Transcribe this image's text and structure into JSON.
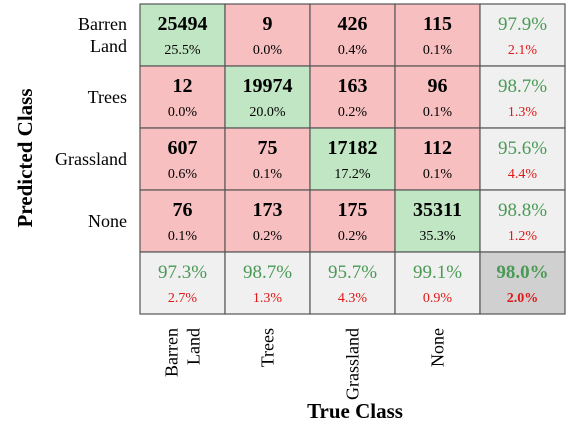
{
  "chart_data": {
    "type": "heatmap",
    "subtype": "confusion_matrix",
    "xlabel": "True Class",
    "ylabel": "Predicted Class",
    "row_labels": [
      [
        "Barren",
        "Land"
      ],
      [
        "Trees"
      ],
      [
        "Grassland"
      ],
      [
        "None"
      ]
    ],
    "col_labels": [
      [
        "Barren",
        "Land"
      ],
      [
        "Trees"
      ],
      [
        "Grassland"
      ],
      [
        "None"
      ]
    ],
    "cells": [
      [
        {
          "count": "25494",
          "pct": "25.5%"
        },
        {
          "count": "9",
          "pct": "0.0%"
        },
        {
          "count": "426",
          "pct": "0.4%"
        },
        {
          "count": "115",
          "pct": "0.1%"
        }
      ],
      [
        {
          "count": "12",
          "pct": "0.0%"
        },
        {
          "count": "19974",
          "pct": "20.0%"
        },
        {
          "count": "163",
          "pct": "0.2%"
        },
        {
          "count": "96",
          "pct": "0.1%"
        }
      ],
      [
        {
          "count": "607",
          "pct": "0.6%"
        },
        {
          "count": "75",
          "pct": "0.1%"
        },
        {
          "count": "17182",
          "pct": "17.2%"
        },
        {
          "count": "112",
          "pct": "0.1%"
        }
      ],
      [
        {
          "count": "76",
          "pct": "0.1%"
        },
        {
          "count": "173",
          "pct": "0.2%"
        },
        {
          "count": "175",
          "pct": "0.2%"
        },
        {
          "count": "35311",
          "pct": "35.3%"
        }
      ]
    ],
    "row_summary": [
      {
        "correct": "97.9%",
        "error": "2.1%"
      },
      {
        "correct": "98.7%",
        "error": "1.3%"
      },
      {
        "correct": "95.6%",
        "error": "4.4%"
      },
      {
        "correct": "98.8%",
        "error": "1.2%"
      }
    ],
    "col_summary": [
      {
        "correct": "97.3%",
        "error": "2.7%"
      },
      {
        "correct": "98.7%",
        "error": "1.3%"
      },
      {
        "correct": "95.7%",
        "error": "4.3%"
      },
      {
        "correct": "99.1%",
        "error": "0.9%"
      }
    ],
    "overall": {
      "correct": "98.0%",
      "error": "2.0%"
    },
    "colors": {
      "diagonal": "#c1e6c3",
      "off_diagonal": "#f7bfc0",
      "summary": "#f0f0f0",
      "overall": "#d0d0d0",
      "good_text": "#4a9a55",
      "bad_text": "#e01818",
      "grid": "#555555"
    }
  }
}
